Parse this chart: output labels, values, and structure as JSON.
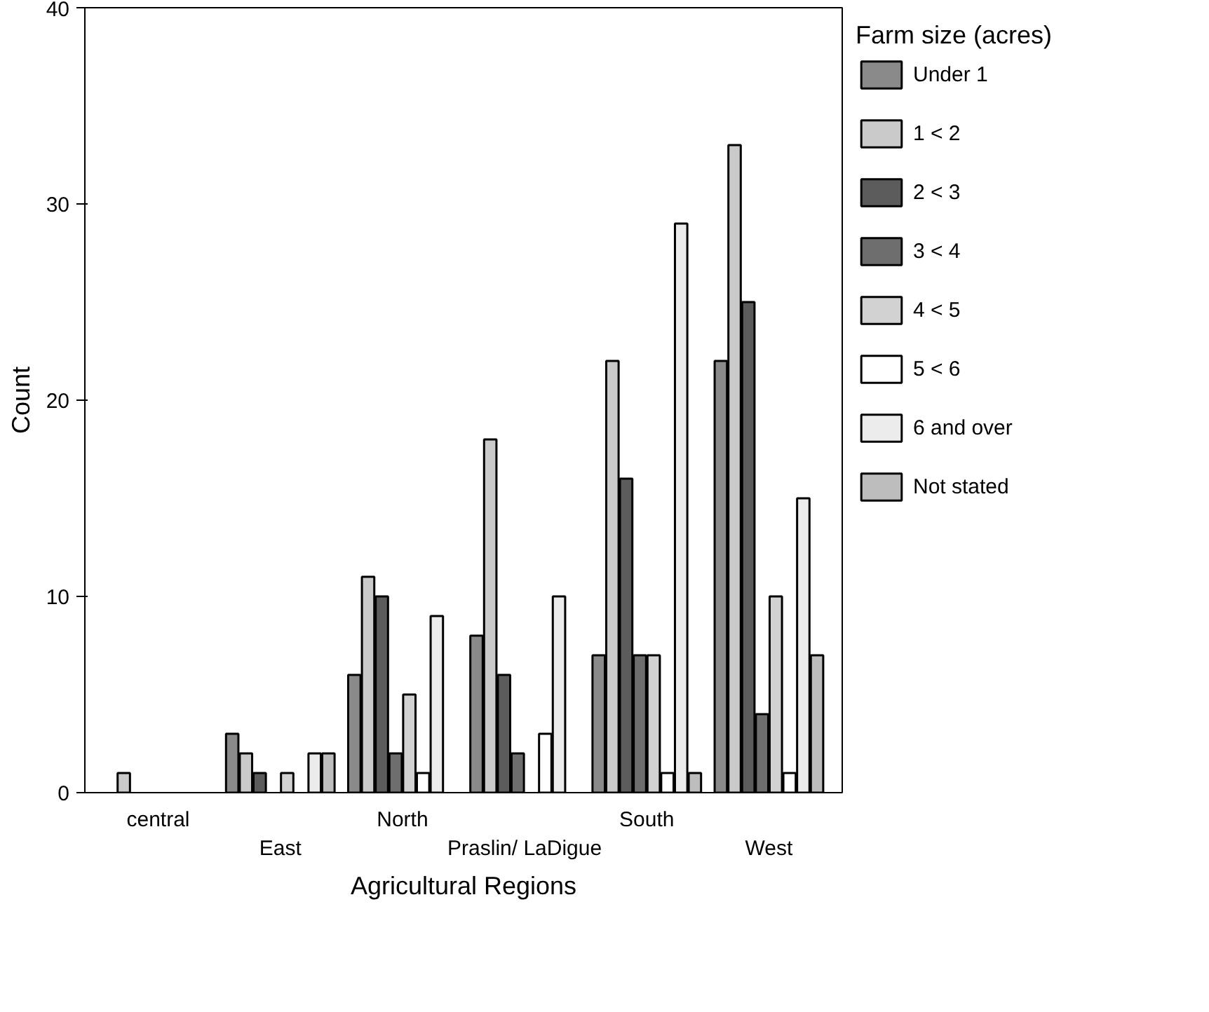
{
  "chart_data": {
    "type": "bar",
    "xlabel": "Agricultural Regions",
    "ylabel": "Count",
    "legend_title": "Farm size (acres)",
    "categories": [
      "central",
      "East",
      "North",
      "Praslin/ LaDigue",
      "South",
      "West"
    ],
    "series": [
      {
        "name": "Under 1",
        "color": "#8a8a8a",
        "values": [
          null,
          3,
          6,
          8,
          7,
          22
        ]
      },
      {
        "name": "1 < 2",
        "color": "#cacaca",
        "values": [
          1,
          2,
          11,
          18,
          22,
          33
        ]
      },
      {
        "name": "2 < 3",
        "color": "#5c5c5c",
        "values": [
          null,
          1,
          10,
          6,
          16,
          25
        ]
      },
      {
        "name": "3 < 4",
        "color": "#6e6e6e",
        "values": [
          null,
          null,
          2,
          2,
          7,
          4
        ]
      },
      {
        "name": "4 < 5",
        "color": "#d2d2d2",
        "values": [
          null,
          1,
          5,
          null,
          7,
          10
        ]
      },
      {
        "name": "5 < 6",
        "color": "#ffffff",
        "values": [
          null,
          null,
          1,
          3,
          1,
          1
        ]
      },
      {
        "name": "6 and over",
        "color": "#ececec",
        "values": [
          null,
          2,
          9,
          10,
          29,
          15
        ]
      },
      {
        "name": "Not stated",
        "color": "#bdbdbd",
        "values": [
          null,
          2,
          null,
          null,
          1,
          7
        ]
      }
    ],
    "ylim": [
      0,
      40
    ],
    "yticks": [
      0,
      10,
      20,
      30,
      40
    ],
    "grid": false,
    "legend": "right"
  }
}
